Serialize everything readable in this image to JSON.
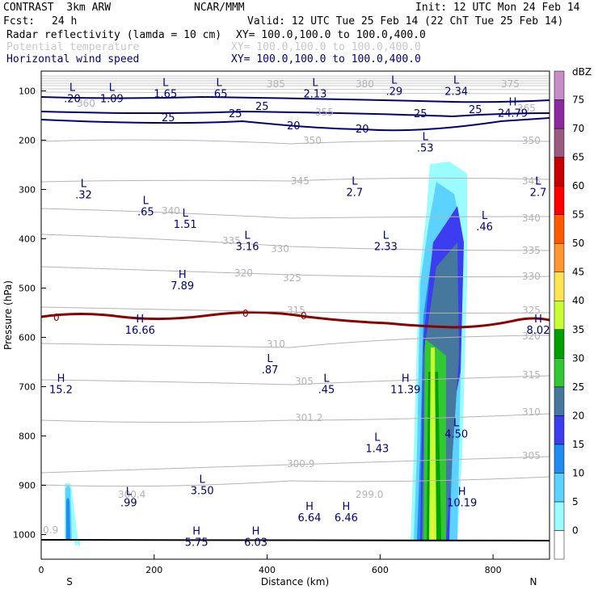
{
  "header": {
    "model": "CONTRAST  3km ARW",
    "org": "NCAR/MMM",
    "init": "Init: 12 UTC Mon 24 Feb 14",
    "fcst_label": "Fcst:",
    "fcst_value": "24 h",
    "valid": "Valid: 12 UTC Tue 25 Feb 14 (22 ChT Tue 25 Feb 14)",
    "fields": [
      {
        "name": "Radar reflectivity (lamda = 10 cm)",
        "xy": "XY= 100.0,100.0 to 100.0,400.0",
        "color": "#000000"
      },
      {
        "name": "Potential temperature",
        "xy": "XY= 100.0,100.0 to 100.0,400.0",
        "color": "#c8c8c8"
      },
      {
        "name": "Horizontal wind speed",
        "xy": "XY= 100.0,100.0 to 100.0,400.0",
        "color": "#00007a"
      }
    ]
  },
  "chart_data": {
    "type": "cross-section",
    "xlabel": "Distance (km)",
    "ylabel": "Pressure (hPa)",
    "xlim": [
      0,
      900
    ],
    "ylim": [
      1050,
      60
    ],
    "xticks": [
      0,
      200,
      400,
      600,
      800
    ],
    "yticks": [
      100,
      200,
      300,
      400,
      500,
      600,
      700,
      800,
      900,
      1000
    ],
    "x_end_labels": {
      "left": "S",
      "right": "N"
    },
    "colorbar": {
      "unit": "dBZ",
      "levels": [
        0,
        5,
        10,
        15,
        20,
        25,
        30,
        35,
        40,
        45,
        50,
        55,
        60,
        65,
        70,
        75
      ],
      "colors": [
        "#ffffff",
        "#9afcff",
        "#5bd2ff",
        "#1e8cf0",
        "#3c3cf0",
        "#46779d",
        "#32c832",
        "#00a000",
        "#c8ff32",
        "#ffe650",
        "#ff9632",
        "#ff5a00",
        "#ff0000",
        "#c80000",
        "#9b5a82",
        "#8c28a0",
        "#c88cc8"
      ]
    },
    "wind_contours": [
      {
        "value": "25",
        "pressure": 125
      },
      {
        "value": "25",
        "pressure": 140
      },
      {
        "value": "20",
        "pressure": 160
      }
    ],
    "theta_labels": [
      "385",
      "380",
      "375",
      "365",
      "360",
      "355",
      "350",
      "345",
      "340",
      "335",
      "330",
      "325",
      "320",
      "315",
      "310",
      "305",
      "301.2",
      "300.9",
      "300.4",
      "299.0"
    ],
    "zero_isotherm_label": "0",
    "extrema": [
      {
        "type": "L",
        "value": ".20",
        "x": 55,
        "p": 100
      },
      {
        "type": "L",
        "value": "1.09",
        "x": 125,
        "p": 100
      },
      {
        "type": "L",
        "value": "1.65",
        "x": 220,
        "p": 90
      },
      {
        "type": "L",
        "value": ".65",
        "x": 315,
        "p": 90
      },
      {
        "type": "L",
        "value": "2.13",
        "x": 485,
        "p": 90
      },
      {
        "type": "L",
        "value": ".29",
        "x": 625,
        "p": 85
      },
      {
        "type": "L",
        "value": "2.34",
        "x": 735,
        "p": 85
      },
      {
        "type": "H",
        "value": "24.79",
        "x": 835,
        "p": 130
      },
      {
        "type": "L",
        "value": ".53",
        "x": 680,
        "p": 200
      },
      {
        "type": "L",
        "value": ".32",
        "x": 75,
        "p": 295
      },
      {
        "type": "L",
        "value": ".65",
        "x": 185,
        "p": 330
      },
      {
        "type": "L",
        "value": "1.51",
        "x": 255,
        "p": 355
      },
      {
        "type": "L",
        "value": "3.16",
        "x": 365,
        "p": 400
      },
      {
        "type": "L",
        "value": "2.7",
        "x": 555,
        "p": 290
      },
      {
        "type": "L",
        "value": "2.33",
        "x": 610,
        "p": 400
      },
      {
        "type": "L",
        "value": ".46",
        "x": 785,
        "p": 360
      },
      {
        "type": "L",
        "value": "2.7",
        "x": 880,
        "p": 290
      },
      {
        "type": "H",
        "value": "7.89",
        "x": 250,
        "p": 480
      },
      {
        "type": "H",
        "value": "16.66",
        "x": 175,
        "p": 570
      },
      {
        "type": "H",
        "value": "8.02",
        "x": 880,
        "p": 570
      },
      {
        "type": "L",
        "value": ".87",
        "x": 405,
        "p": 650
      },
      {
        "type": "H",
        "value": "15.2",
        "x": 35,
        "p": 690
      },
      {
        "type": "L",
        "value": ".45",
        "x": 505,
        "p": 690
      },
      {
        "type": "H",
        "value": "11.39",
        "x": 645,
        "p": 690
      },
      {
        "type": "L",
        "value": "4.50",
        "x": 735,
        "p": 780
      },
      {
        "type": "L",
        "value": "1.43",
        "x": 595,
        "p": 810
      },
      {
        "type": "L",
        "value": "3.50",
        "x": 285,
        "p": 895
      },
      {
        "type": "L",
        "value": ".99",
        "x": 155,
        "p": 920
      },
      {
        "type": "H",
        "value": "10.19",
        "x": 745,
        "p": 920
      },
      {
        "type": "H",
        "value": "6.64",
        "x": 475,
        "p": 950
      },
      {
        "type": "H",
        "value": "6.46",
        "x": 540,
        "p": 950
      },
      {
        "type": "H",
        "value": "5.75",
        "x": 275,
        "p": 1000
      },
      {
        "type": "H",
        "value": "6.03",
        "x": 380,
        "p": 1000
      }
    ],
    "corner_value": "0.9"
  }
}
